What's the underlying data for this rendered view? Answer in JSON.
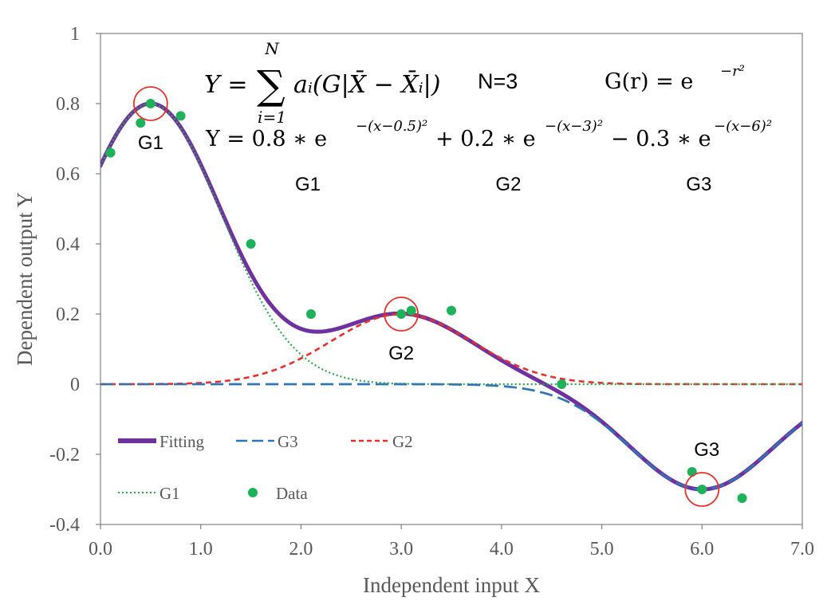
{
  "chart_data": {
    "type": "line",
    "xlabel": "Independent input X",
    "ylabel": "Dependent output Y",
    "xlim": [
      0,
      7
    ],
    "ylim": [
      -0.4,
      1
    ],
    "x_ticks": [
      "0.0",
      "1.0",
      "2.0",
      "3.0",
      "4.0",
      "5.0",
      "6.0",
      "7.0"
    ],
    "y_ticks": [
      "-0.4",
      "-0.2",
      "0",
      "0.2",
      "0.4",
      "0.6",
      "0.8",
      "1"
    ],
    "x_tick_values": [
      0,
      1,
      2,
      3,
      4,
      5,
      6,
      7
    ],
    "y_tick_values": [
      -0.4,
      -0.2,
      0,
      0.2,
      0.4,
      0.6,
      0.8,
      1
    ],
    "grid": false,
    "legend_position": "bottom-left",
    "series": [
      {
        "name": "Fitting",
        "kind": "curve",
        "style": "solid-thick",
        "color": "#7030A0",
        "terms": [
          {
            "a": 0.8,
            "c": 0.5
          },
          {
            "a": 0.2,
            "c": 3
          },
          {
            "a": -0.3,
            "c": 6
          }
        ]
      },
      {
        "name": "G3",
        "kind": "curve",
        "style": "long-dash",
        "color": "#2E75B6",
        "terms": [
          {
            "a": -0.3,
            "c": 6
          }
        ]
      },
      {
        "name": "G2",
        "kind": "curve",
        "style": "short-dash",
        "color": "#E8302A",
        "terms": [
          {
            "a": 0.2,
            "c": 3
          }
        ]
      },
      {
        "name": "G1",
        "kind": "curve",
        "style": "dotted",
        "color": "#2BA84A",
        "terms": [
          {
            "a": 0.8,
            "c": 0.5
          }
        ]
      },
      {
        "name": "Data",
        "kind": "points",
        "color": "#1DB15A",
        "points": [
          [
            0.1,
            0.66
          ],
          [
            0.4,
            0.745
          ],
          [
            0.5,
            0.8
          ],
          [
            0.8,
            0.765
          ],
          [
            1.5,
            0.4
          ],
          [
            2.1,
            0.2
          ],
          [
            3.0,
            0.2
          ],
          [
            3.1,
            0.21
          ],
          [
            3.5,
            0.21
          ],
          [
            4.6,
            0.0
          ],
          [
            5.9,
            -0.25
          ],
          [
            6.0,
            -0.3
          ],
          [
            6.4,
            -0.325
          ]
        ]
      }
    ],
    "highlight_circles": [
      {
        "label": "G1",
        "x": 0.5,
        "y": 0.8
      },
      {
        "label": "G2",
        "x": 3.0,
        "y": 0.2
      },
      {
        "label": "G3",
        "x": 6.0,
        "y": -0.3
      }
    ],
    "region_labels": [
      {
        "text": "G1",
        "x": 2.1,
        "y": 0.57
      },
      {
        "text": "G2",
        "x": 4.1,
        "y": 0.57
      },
      {
        "text": "G3",
        "x": 6.0,
        "y": 0.57
      }
    ],
    "equations": {
      "line1": {
        "lhs": "Y =",
        "sum": "∑",
        "sum_top": "N",
        "sum_bottom": "i=1",
        "body": "aᵢ(G|X̄ − X̄ᵢ|)",
        "n_eq": "N=3",
        "g_def": "G(r) = e",
        "g_exp": "−r²"
      },
      "line2": {
        "lead": "Y = 0.8 ∗ e",
        "exp1": "−(x−0.5)²",
        "mid1": "+ 0.2 ∗ e",
        "exp2": "−(x−3)²",
        "mid2": "− 0.3 ∗ e",
        "exp3": "−(x−6)²"
      }
    }
  }
}
